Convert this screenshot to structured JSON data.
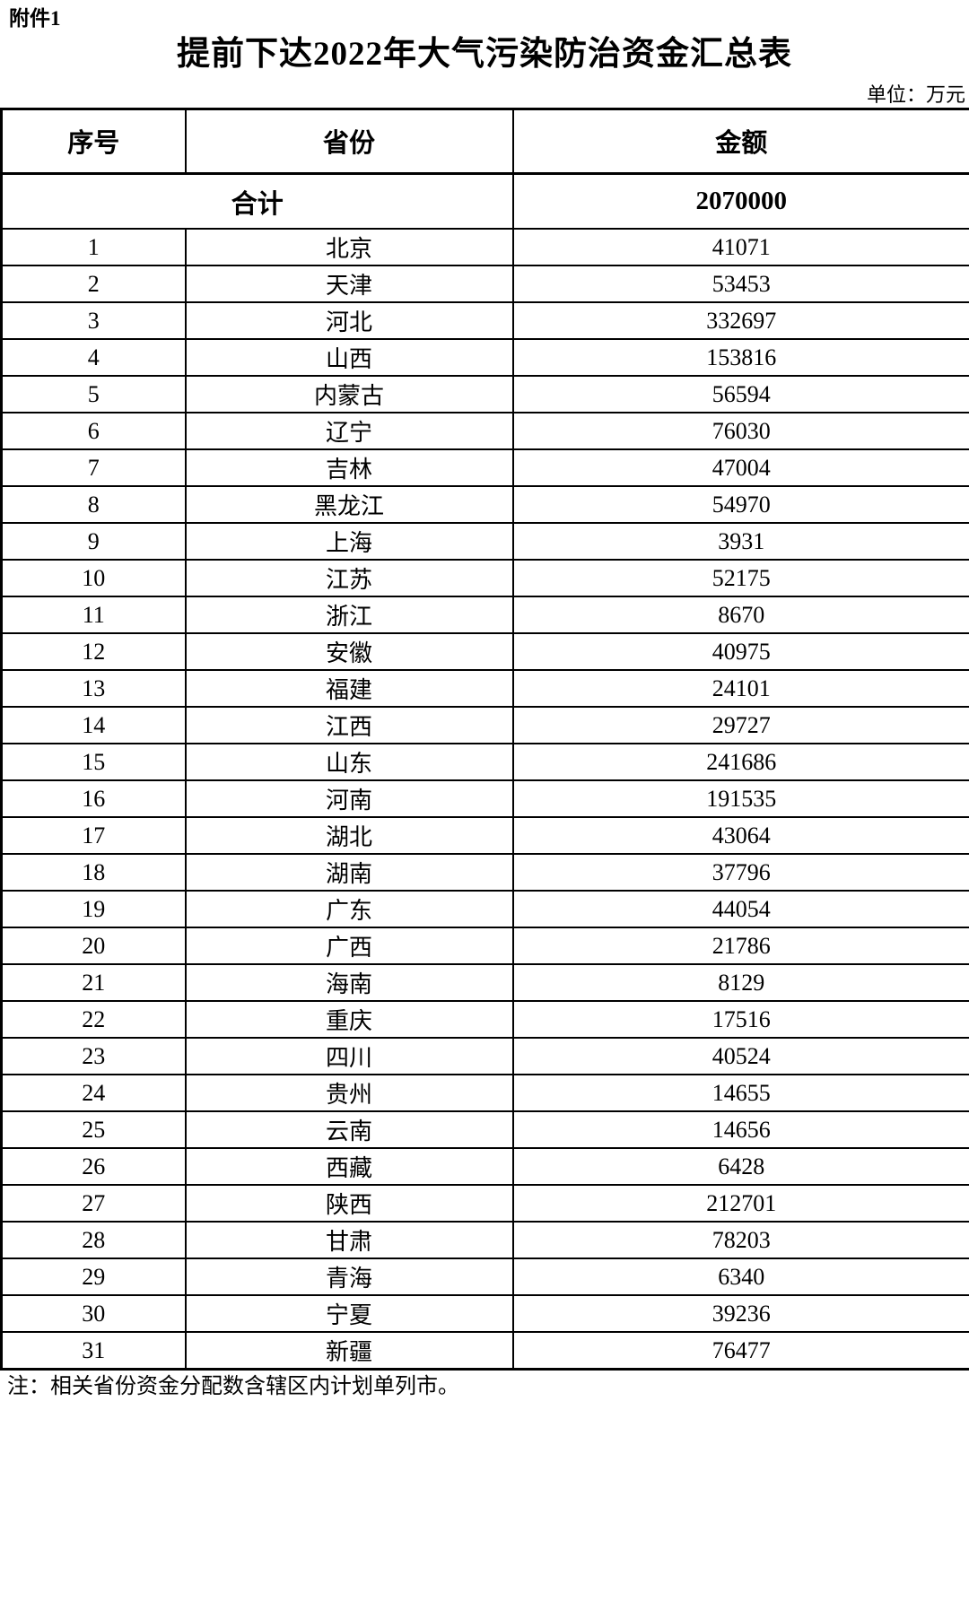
{
  "page": {
    "attachment_label": "附件1",
    "title": "提前下达2022年大气污染防治资金汇总表",
    "unit_label": "单位：万元",
    "note": "注：相关省份资金分配数含辖区内计划单列市。"
  },
  "table": {
    "headers": [
      "序号",
      "省份",
      "金额"
    ],
    "total_row": {
      "label": "合计",
      "amount": "2070000"
    },
    "rows": [
      {
        "no": "1",
        "province": "北京",
        "amount": "41071"
      },
      {
        "no": "2",
        "province": "天津",
        "amount": "53453"
      },
      {
        "no": "3",
        "province": "河北",
        "amount": "332697"
      },
      {
        "no": "4",
        "province": "山西",
        "amount": "153816"
      },
      {
        "no": "5",
        "province": "内蒙古",
        "amount": "56594"
      },
      {
        "no": "6",
        "province": "辽宁",
        "amount": "76030"
      },
      {
        "no": "7",
        "province": "吉林",
        "amount": "47004"
      },
      {
        "no": "8",
        "province": "黑龙江",
        "amount": "54970"
      },
      {
        "no": "9",
        "province": "上海",
        "amount": "3931"
      },
      {
        "no": "10",
        "province": "江苏",
        "amount": "52175"
      },
      {
        "no": "11",
        "province": "浙江",
        "amount": "8670"
      },
      {
        "no": "12",
        "province": "安徽",
        "amount": "40975"
      },
      {
        "no": "13",
        "province": "福建",
        "amount": "24101"
      },
      {
        "no": "14",
        "province": "江西",
        "amount": "29727"
      },
      {
        "no": "15",
        "province": "山东",
        "amount": "241686"
      },
      {
        "no": "16",
        "province": "河南",
        "amount": "191535"
      },
      {
        "no": "17",
        "province": "湖北",
        "amount": "43064"
      },
      {
        "no": "18",
        "province": "湖南",
        "amount": "37796"
      },
      {
        "no": "19",
        "province": "广东",
        "amount": "44054"
      },
      {
        "no": "20",
        "province": "广西",
        "amount": "21786"
      },
      {
        "no": "21",
        "province": "海南",
        "amount": "8129"
      },
      {
        "no": "22",
        "province": "重庆",
        "amount": "17516"
      },
      {
        "no": "23",
        "province": "四川",
        "amount": "40524"
      },
      {
        "no": "24",
        "province": "贵州",
        "amount": "14655"
      },
      {
        "no": "25",
        "province": "云南",
        "amount": "14656"
      },
      {
        "no": "26",
        "province": "西藏",
        "amount": "6428"
      },
      {
        "no": "27",
        "province": "陕西",
        "amount": "212701"
      },
      {
        "no": "28",
        "province": "甘肃",
        "amount": "78203"
      },
      {
        "no": "29",
        "province": "青海",
        "amount": "6340"
      },
      {
        "no": "30",
        "province": "宁夏",
        "amount": "39236"
      },
      {
        "no": "31",
        "province": "新疆",
        "amount": "76477"
      }
    ]
  }
}
